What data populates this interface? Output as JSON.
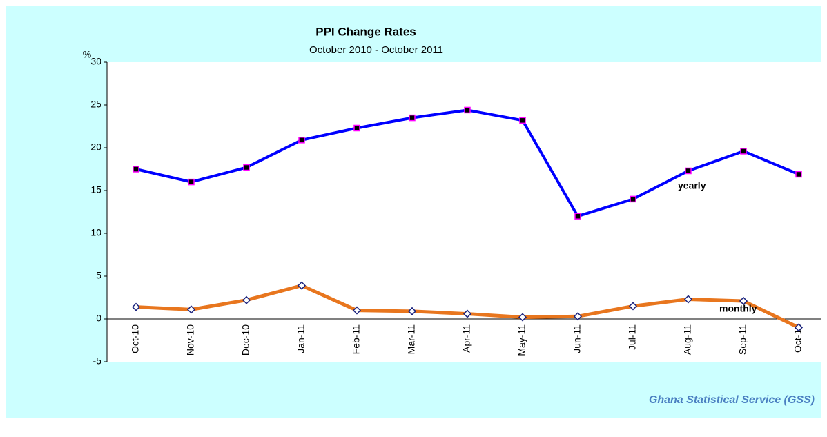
{
  "chart_data": {
    "type": "line",
    "title": "PPI Change Rates",
    "subtitle": "October 2010 - October 2011",
    "y_label": "%",
    "source": "Ghana Statistical Service (GSS)",
    "categories": [
      "Oct-10",
      "Nov-10",
      "Dec-10",
      "Jan-11",
      "Feb-11",
      "Mar-11",
      "Apr-11",
      "May-11",
      "Jun-11",
      "Jul-11",
      "Aug-11",
      "Sep-11",
      "Oct-11"
    ],
    "series": [
      {
        "name": "yearly",
        "color": "#0000ff",
        "marker_color": "#ff00ff",
        "values": [
          17.5,
          16.0,
          17.7,
          20.9,
          22.3,
          23.5,
          24.4,
          23.2,
          12.0,
          14.0,
          17.3,
          19.6,
          16.9
        ]
      },
      {
        "name": "monthly",
        "color": "#e8761e",
        "marker_color": "#1a237e",
        "values": [
          1.4,
          1.1,
          2.2,
          3.9,
          1.0,
          0.9,
          0.6,
          0.2,
          0.3,
          1.5,
          2.3,
          2.1,
          -1.0
        ]
      }
    ],
    "ylim": [
      -5,
      30
    ],
    "yticks": [
      -5,
      0,
      5,
      10,
      15,
      20,
      25,
      30
    ],
    "grid": false
  }
}
